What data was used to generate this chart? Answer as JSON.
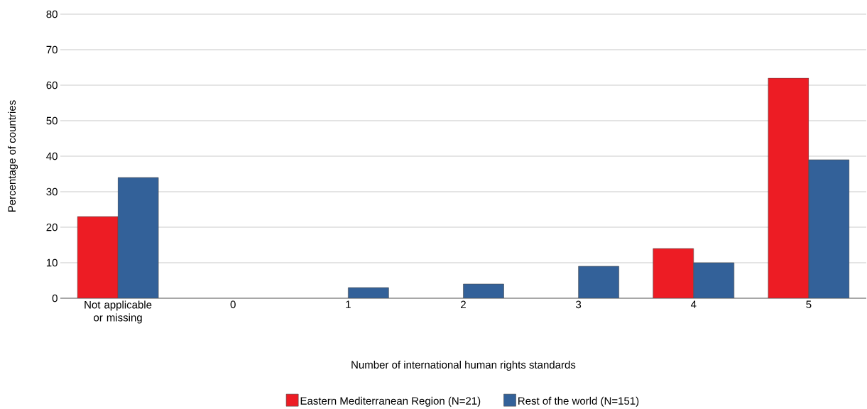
{
  "chart_data": {
    "type": "bar",
    "xlabel": "Number of international human rights standards",
    "ylabel": "Percentage of countries",
    "categories": [
      "Not applicable or missing",
      "0",
      "1",
      "2",
      "3",
      "4",
      "5"
    ],
    "series": [
      {
        "name": "Eastern Mediterranean Region (N=21)",
        "color": "#ed1c24",
        "values": [
          23,
          0,
          0,
          0,
          0,
          14,
          62
        ]
      },
      {
        "name": "Rest of the world (N=151)",
        "color": "#336199",
        "values": [
          34,
          0,
          3,
          4,
          9,
          10,
          39
        ]
      }
    ],
    "ylim": [
      0,
      80
    ],
    "yticks": [
      0,
      10,
      20,
      30,
      40,
      50,
      60,
      70,
      80
    ],
    "grid": "y",
    "legend": "bottom"
  }
}
